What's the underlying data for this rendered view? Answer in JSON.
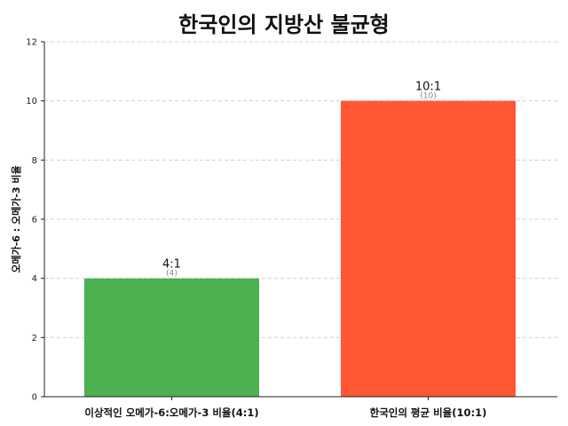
{
  "chart_data": {
    "type": "bar",
    "title": "한국인의 지방산 불균형",
    "xlabel": "",
    "ylabel": "오메가-6 : 오메가-3 비율",
    "categories": [
      "이상적인 오메가-6:오메가-3 비율(4:1)",
      "한국인의 평균 비율(10:1)"
    ],
    "values": [
      4,
      10
    ],
    "bar_colors": [
      "#4caf50",
      "#ff5733"
    ],
    "bar_labels": [
      "4:1",
      "10:1"
    ],
    "bar_sublabels": [
      "(4)",
      "(10)"
    ],
    "ylim": [
      0,
      12
    ],
    "yticks": [
      0,
      2,
      4,
      6,
      8,
      10,
      12
    ],
    "grid": true
  }
}
